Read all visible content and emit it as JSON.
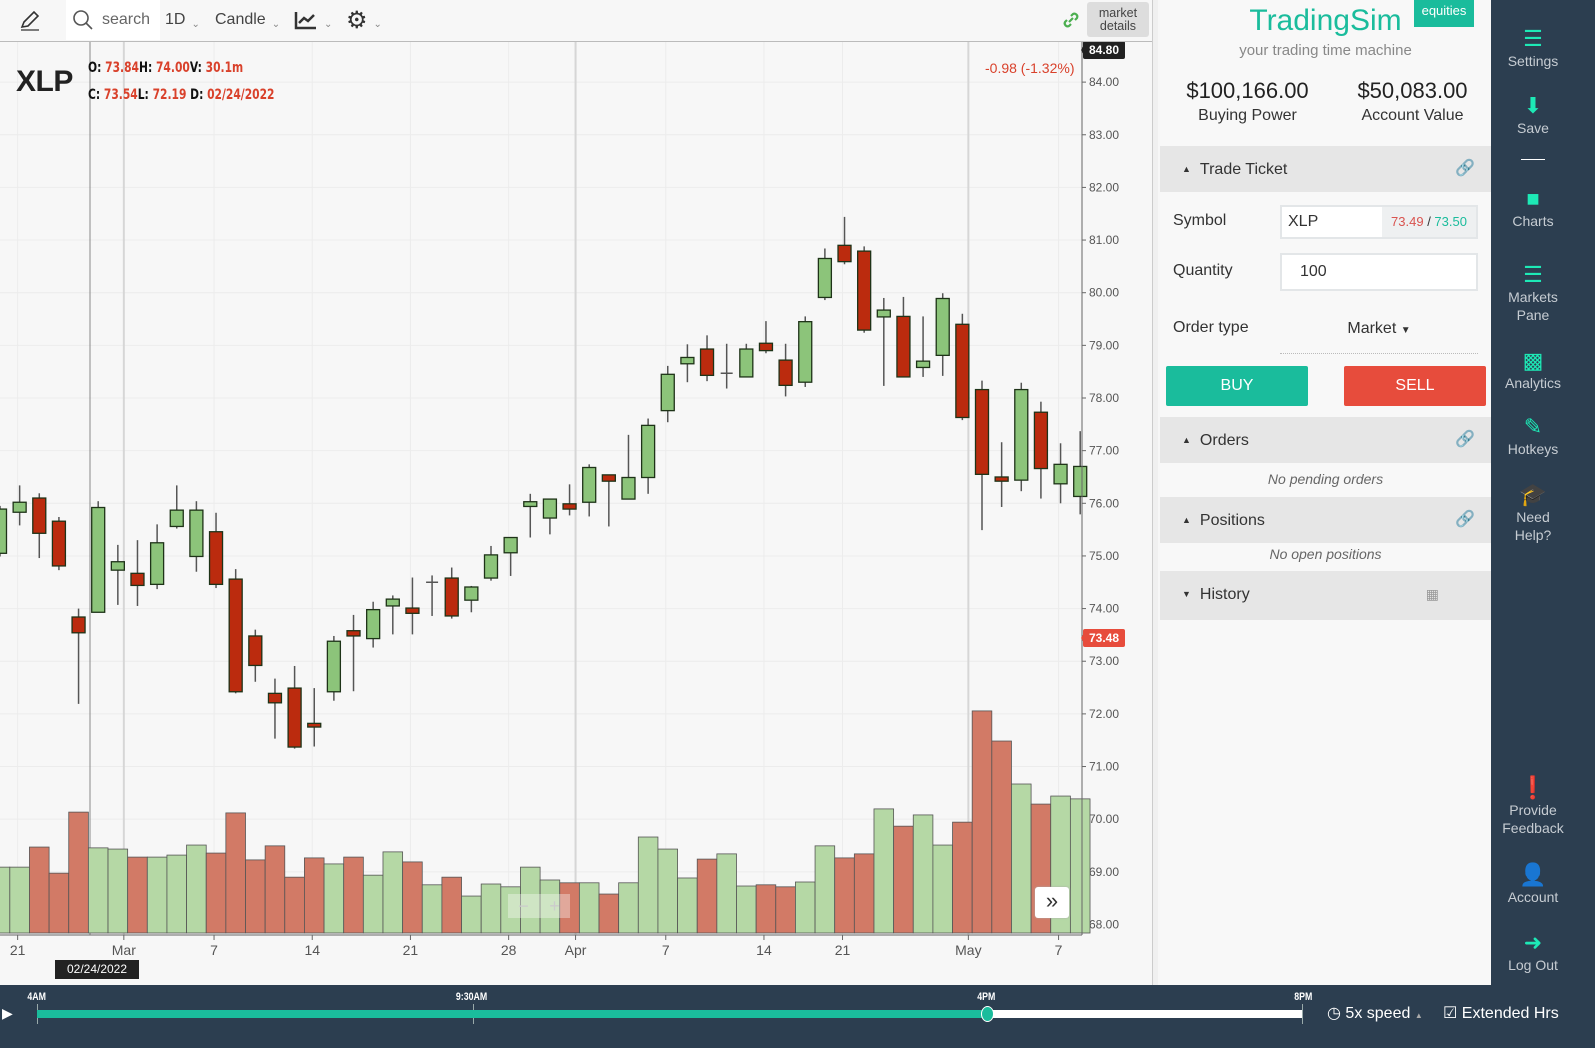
{
  "toolbar": {
    "search_placeholder": "search",
    "interval": "1D",
    "chart_type": "Candle",
    "market_details": "market\ndetails"
  },
  "legend": {
    "symbol": "XLP",
    "o_label": "O:",
    "o": "73.84",
    "h_label": "H:",
    "h": "74.00",
    "v_label": "V:",
    "v": "30.1m",
    "c_label": "C:",
    "c": "73.54",
    "l_label": "L:",
    "l": "72.19",
    "d_label": "D:",
    "d": "02/24/2022"
  },
  "change": "-0.98 (-1.32%)",
  "price_tags": {
    "high": "84.80",
    "last": "73.48"
  },
  "crosshair_date": "02/24/2022",
  "colors": {
    "up": "#8cc47a",
    "down": "#bb2b0e",
    "vol_up": "#b5d8a5",
    "vol_down": "#d27a66",
    "accent": "#1abc9c",
    "sell": "#e74c3c",
    "sidebar": "#2c3e50"
  },
  "chart_data": {
    "type": "candlestick",
    "ylim": [
      67.8,
      84.8
    ],
    "grid": true,
    "y_ticks": [
      "84.00",
      "83.00",
      "82.00",
      "81.00",
      "80.00",
      "79.00",
      "78.00",
      "77.00",
      "76.00",
      "75.00",
      "74.00",
      "73.00",
      "72.00",
      "71.00",
      "70.00",
      "69.00",
      "68.00"
    ],
    "x_ticks": [
      {
        "label": "21",
        "index": 1
      },
      {
        "label": "Mar",
        "index": 6
      },
      {
        "label": "7",
        "index": 11
      },
      {
        "label": "14",
        "index": 16
      },
      {
        "label": "21",
        "index": 21
      },
      {
        "label": "28",
        "index": 26
      },
      {
        "label": "Apr",
        "index": 29
      },
      {
        "label": "7",
        "index": 34
      },
      {
        "label": "14",
        "index": 39
      },
      {
        "label": "21",
        "index": 43
      },
      {
        "label": "May",
        "index": 49
      },
      {
        "label": "7",
        "index": 54
      }
    ],
    "ohlc": [
      [
        75.05,
        75.95,
        74.99,
        75.89
      ],
      [
        75.83,
        76.34,
        75.58,
        76.02
      ],
      [
        76.1,
        76.19,
        74.96,
        75.43
      ],
      [
        75.66,
        75.74,
        74.73,
        74.81
      ],
      [
        73.84,
        74.0,
        72.19,
        73.54
      ],
      [
        73.93,
        76.04,
        73.93,
        75.92
      ],
      [
        74.73,
        75.21,
        74.07,
        74.89
      ],
      [
        74.67,
        75.3,
        74.05,
        74.44
      ],
      [
        74.46,
        75.6,
        74.37,
        75.25
      ],
      [
        75.56,
        76.34,
        75.52,
        75.87
      ],
      [
        74.99,
        76.04,
        74.7,
        75.87
      ],
      [
        75.46,
        75.82,
        74.39,
        74.46
      ],
      [
        74.56,
        74.75,
        72.39,
        72.42
      ],
      [
        73.48,
        73.6,
        72.61,
        72.92
      ],
      [
        72.39,
        72.67,
        71.53,
        72.21
      ],
      [
        72.49,
        72.91,
        71.34,
        71.37
      ],
      [
        71.82,
        72.49,
        71.38,
        71.75
      ],
      [
        72.42,
        73.48,
        72.25,
        73.38
      ],
      [
        73.58,
        73.88,
        72.43,
        73.48
      ],
      [
        73.43,
        74.13,
        73.26,
        73.98
      ],
      [
        74.05,
        74.25,
        73.51,
        74.18
      ],
      [
        74.01,
        74.59,
        73.51,
        73.91
      ],
      [
        74.5,
        74.63,
        73.86,
        74.5
      ],
      [
        74.58,
        74.78,
        73.81,
        73.86
      ],
      [
        74.16,
        74.43,
        73.93,
        74.41
      ],
      [
        74.58,
        75.19,
        74.53,
        75.02
      ],
      [
        75.06,
        75.35,
        74.62,
        75.35
      ],
      [
        75.94,
        76.18,
        75.35,
        76.03
      ],
      [
        75.72,
        76.08,
        75.41,
        76.08
      ],
      [
        75.99,
        76.36,
        75.77,
        75.89
      ],
      [
        76.02,
        76.74,
        75.75,
        76.68
      ],
      [
        76.54,
        76.54,
        75.56,
        76.42
      ],
      [
        76.08,
        77.3,
        76.08,
        76.49
      ],
      [
        76.49,
        77.61,
        76.18,
        77.48
      ],
      [
        77.76,
        78.61,
        77.54,
        78.45
      ],
      [
        78.65,
        79.02,
        78.3,
        78.77
      ],
      [
        78.93,
        79.19,
        78.32,
        78.43
      ],
      [
        78.47,
        79.03,
        78.18,
        78.47
      ],
      [
        78.4,
        79.03,
        78.4,
        78.93
      ],
      [
        79.04,
        79.46,
        78.85,
        78.9
      ],
      [
        78.72,
        79.03,
        78.03,
        78.24
      ],
      [
        78.3,
        79.55,
        78.21,
        79.45
      ],
      [
        79.91,
        80.84,
        79.86,
        80.65
      ],
      [
        80.9,
        81.44,
        80.54,
        80.59
      ],
      [
        80.79,
        80.88,
        79.24,
        79.29
      ],
      [
        79.54,
        79.9,
        78.23,
        79.67
      ],
      [
        79.55,
        79.92,
        78.4,
        78.4
      ],
      [
        78.58,
        79.55,
        78.4,
        78.7
      ],
      [
        78.81,
        79.99,
        78.42,
        79.89
      ],
      [
        79.4,
        79.6,
        77.58,
        77.63
      ],
      [
        78.16,
        78.33,
        75.49,
        76.55
      ],
      [
        76.5,
        77.16,
        75.93,
        76.42
      ],
      [
        76.44,
        78.29,
        76.23,
        78.16
      ],
      [
        77.73,
        77.93,
        76.09,
        76.66
      ],
      [
        76.37,
        77.14,
        76.0,
        76.74
      ],
      [
        76.13,
        77.37,
        75.79,
        76.7
      ]
    ],
    "volume_m": [
      16.4,
      16.4,
      21.4,
      14.9,
      30.1,
      21.2,
      20.9,
      18.9,
      18.9,
      19.4,
      21.9,
      19.9,
      29.9,
      18.2,
      21.7,
      13.9,
      18.7,
      17.2,
      18.9,
      14.4,
      20.2,
      17.7,
      12.0,
      13.9,
      9.2,
      12.2,
      11.5,
      16.4,
      13.2,
      12.5,
      12.5,
      9.7,
      12.5,
      23.9,
      20.9,
      13.7,
      18.4,
      19.7,
      11.7,
      12.0,
      11.5,
      12.7,
      21.7,
      18.7,
      19.7,
      30.9,
      26.6,
      29.4,
      21.9,
      27.6,
      55.3,
      47.8,
      37.1,
      32.1,
      34.1,
      33.4
    ]
  },
  "panel": {
    "brand": "TradingSim",
    "tagline": "your trading time machine",
    "badge": "equities",
    "buying_power": "$100,166.00",
    "buying_power_label": "Buying Power",
    "account_value": "$50,083.00",
    "account_value_label": "Account Value",
    "trade_ticket": "Trade Ticket",
    "symbol_label": "Symbol",
    "symbol_value": "XLP",
    "bid": "73.49",
    "ask": "73.50",
    "sep": " / ",
    "quantity_label": "Quantity",
    "quantity_value": "100",
    "order_type_label": "Order type",
    "order_type_value": "Market",
    "buy": "BUY",
    "sell": "SELL",
    "orders": "Orders",
    "orders_empty": "No pending orders",
    "positions": "Positions",
    "positions_empty": "No open positions",
    "history": "History"
  },
  "sidebar": [
    {
      "label": "Settings",
      "icon": "menu-icon"
    },
    {
      "label": "Save",
      "icon": "download-icon"
    },
    {
      "label": "Charts",
      "icon": "square-icon"
    },
    {
      "label": "Markets\nPane",
      "icon": "list-icon"
    },
    {
      "label": "Analytics",
      "icon": "bar-chart-icon"
    },
    {
      "label": "Hotkeys",
      "icon": "edit-icon"
    },
    {
      "label": "Need\nHelp?",
      "icon": "graduation-cap-icon"
    },
    {
      "label": "Provide\nFeedback",
      "icon": "exclamation-icon"
    },
    {
      "label": "Account",
      "icon": "user-icon"
    },
    {
      "label": "Log Out",
      "icon": "logout-icon"
    }
  ],
  "timeline": {
    "labels": [
      "4AM",
      "9:30AM",
      "4PM",
      "8PM"
    ],
    "progress": 0.75,
    "speed": "5x speed",
    "extended": "Extended Hrs"
  }
}
